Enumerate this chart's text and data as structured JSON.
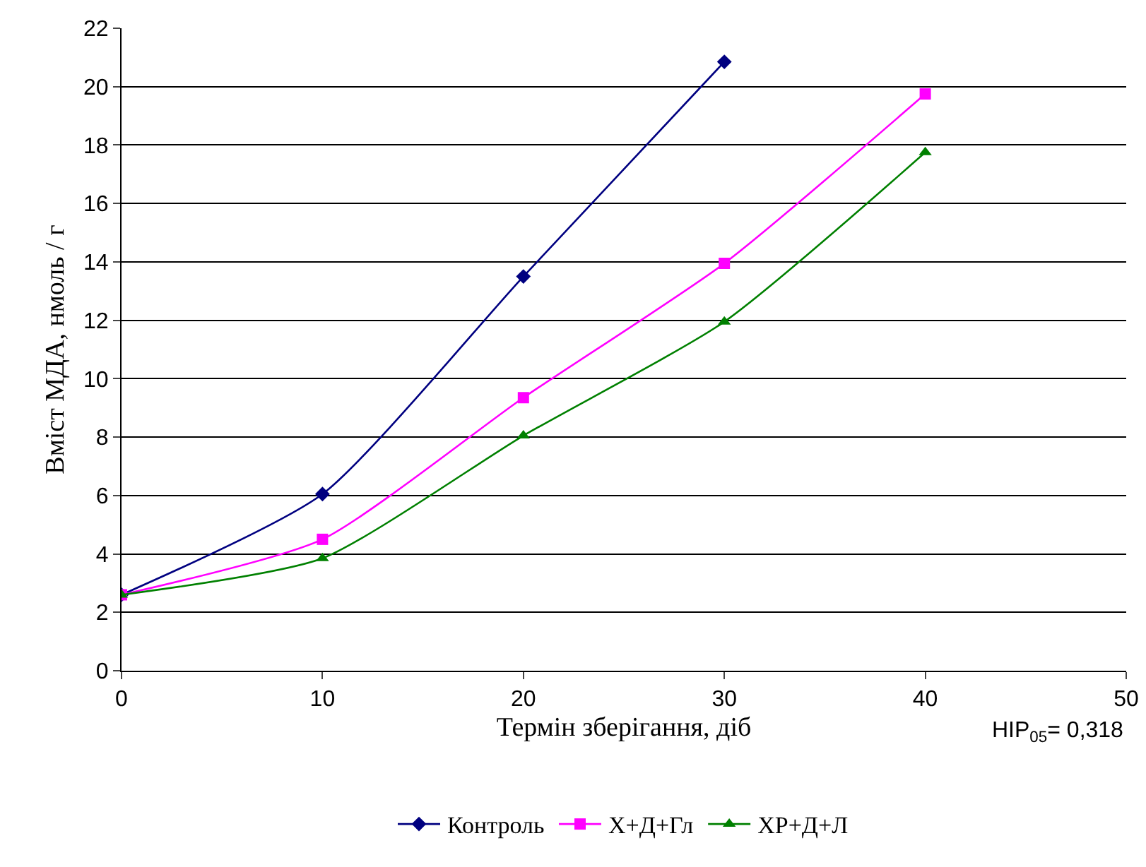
{
  "chart_data": {
    "type": "line",
    "xlabel": "Термін зберігання, діб",
    "ylabel": "Вміст МДА, нмоль / г",
    "x": [
      0,
      10,
      20,
      30,
      40
    ],
    "series": [
      {
        "name": "Контроль",
        "color": "#000080",
        "marker": "diamond",
        "values": [
          2.6,
          6.05,
          13.5,
          20.85,
          null
        ]
      },
      {
        "name": "Х+Д+Гл",
        "color": "#ff00ff",
        "marker": "square",
        "values": [
          2.6,
          4.5,
          9.35,
          13.95,
          19.75
        ]
      },
      {
        "name": "ХР+Д+Л",
        "color": "#008000",
        "marker": "triangle",
        "values": [
          2.6,
          3.85,
          8.05,
          11.95,
          17.75
        ]
      }
    ],
    "xlim": [
      0,
      50
    ],
    "xticks": [
      0,
      10,
      20,
      30,
      40,
      50
    ],
    "ylim": [
      0,
      22
    ],
    "yticks": [
      0,
      2,
      4,
      6,
      8,
      10,
      12,
      14,
      16,
      18,
      20,
      22
    ],
    "grid": "y",
    "legend": "bottom",
    "line_style": "solid",
    "annotations": [
      "НІР$_{05}$= 0,318"
    ]
  }
}
